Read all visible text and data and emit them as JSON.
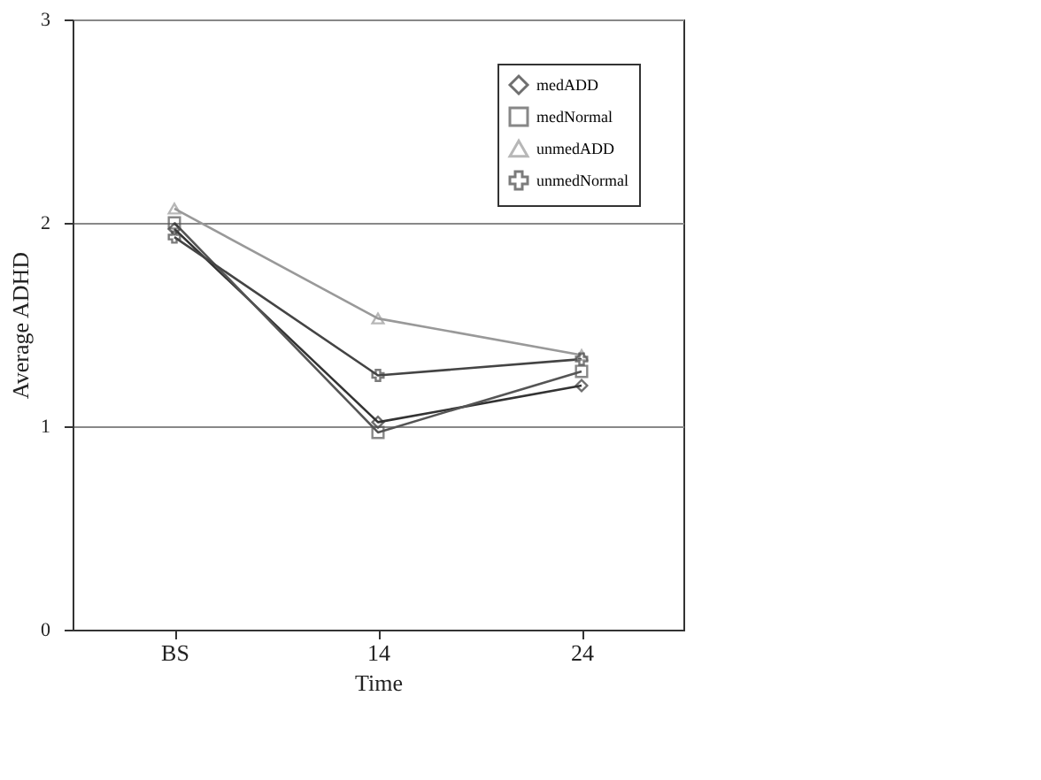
{
  "chart_data": {
    "type": "line",
    "xlabel": "Time",
    "ylabel": "Average ADHD",
    "categories": [
      "BS",
      "14",
      "24"
    ],
    "series": [
      {
        "name": "medADD",
        "color": "#333333",
        "marker": "diamond",
        "values": [
          1.97,
          1.02,
          1.2
        ]
      },
      {
        "name": "medNormal",
        "color": "#555555",
        "marker": "square",
        "values": [
          2.0,
          0.97,
          1.27
        ]
      },
      {
        "name": "unmedADD",
        "color": "#999999",
        "marker": "triangle",
        "values": [
          2.07,
          1.53,
          1.35
        ]
      },
      {
        "name": "unmedNormal",
        "color": "#444444",
        "marker": "cross",
        "values": [
          1.93,
          1.25,
          1.33
        ]
      }
    ],
    "ylim": [
      0,
      3
    ],
    "yticks": [
      0,
      1,
      2,
      3
    ],
    "grid": "y",
    "legend": "top right",
    "line_style": "solid"
  }
}
